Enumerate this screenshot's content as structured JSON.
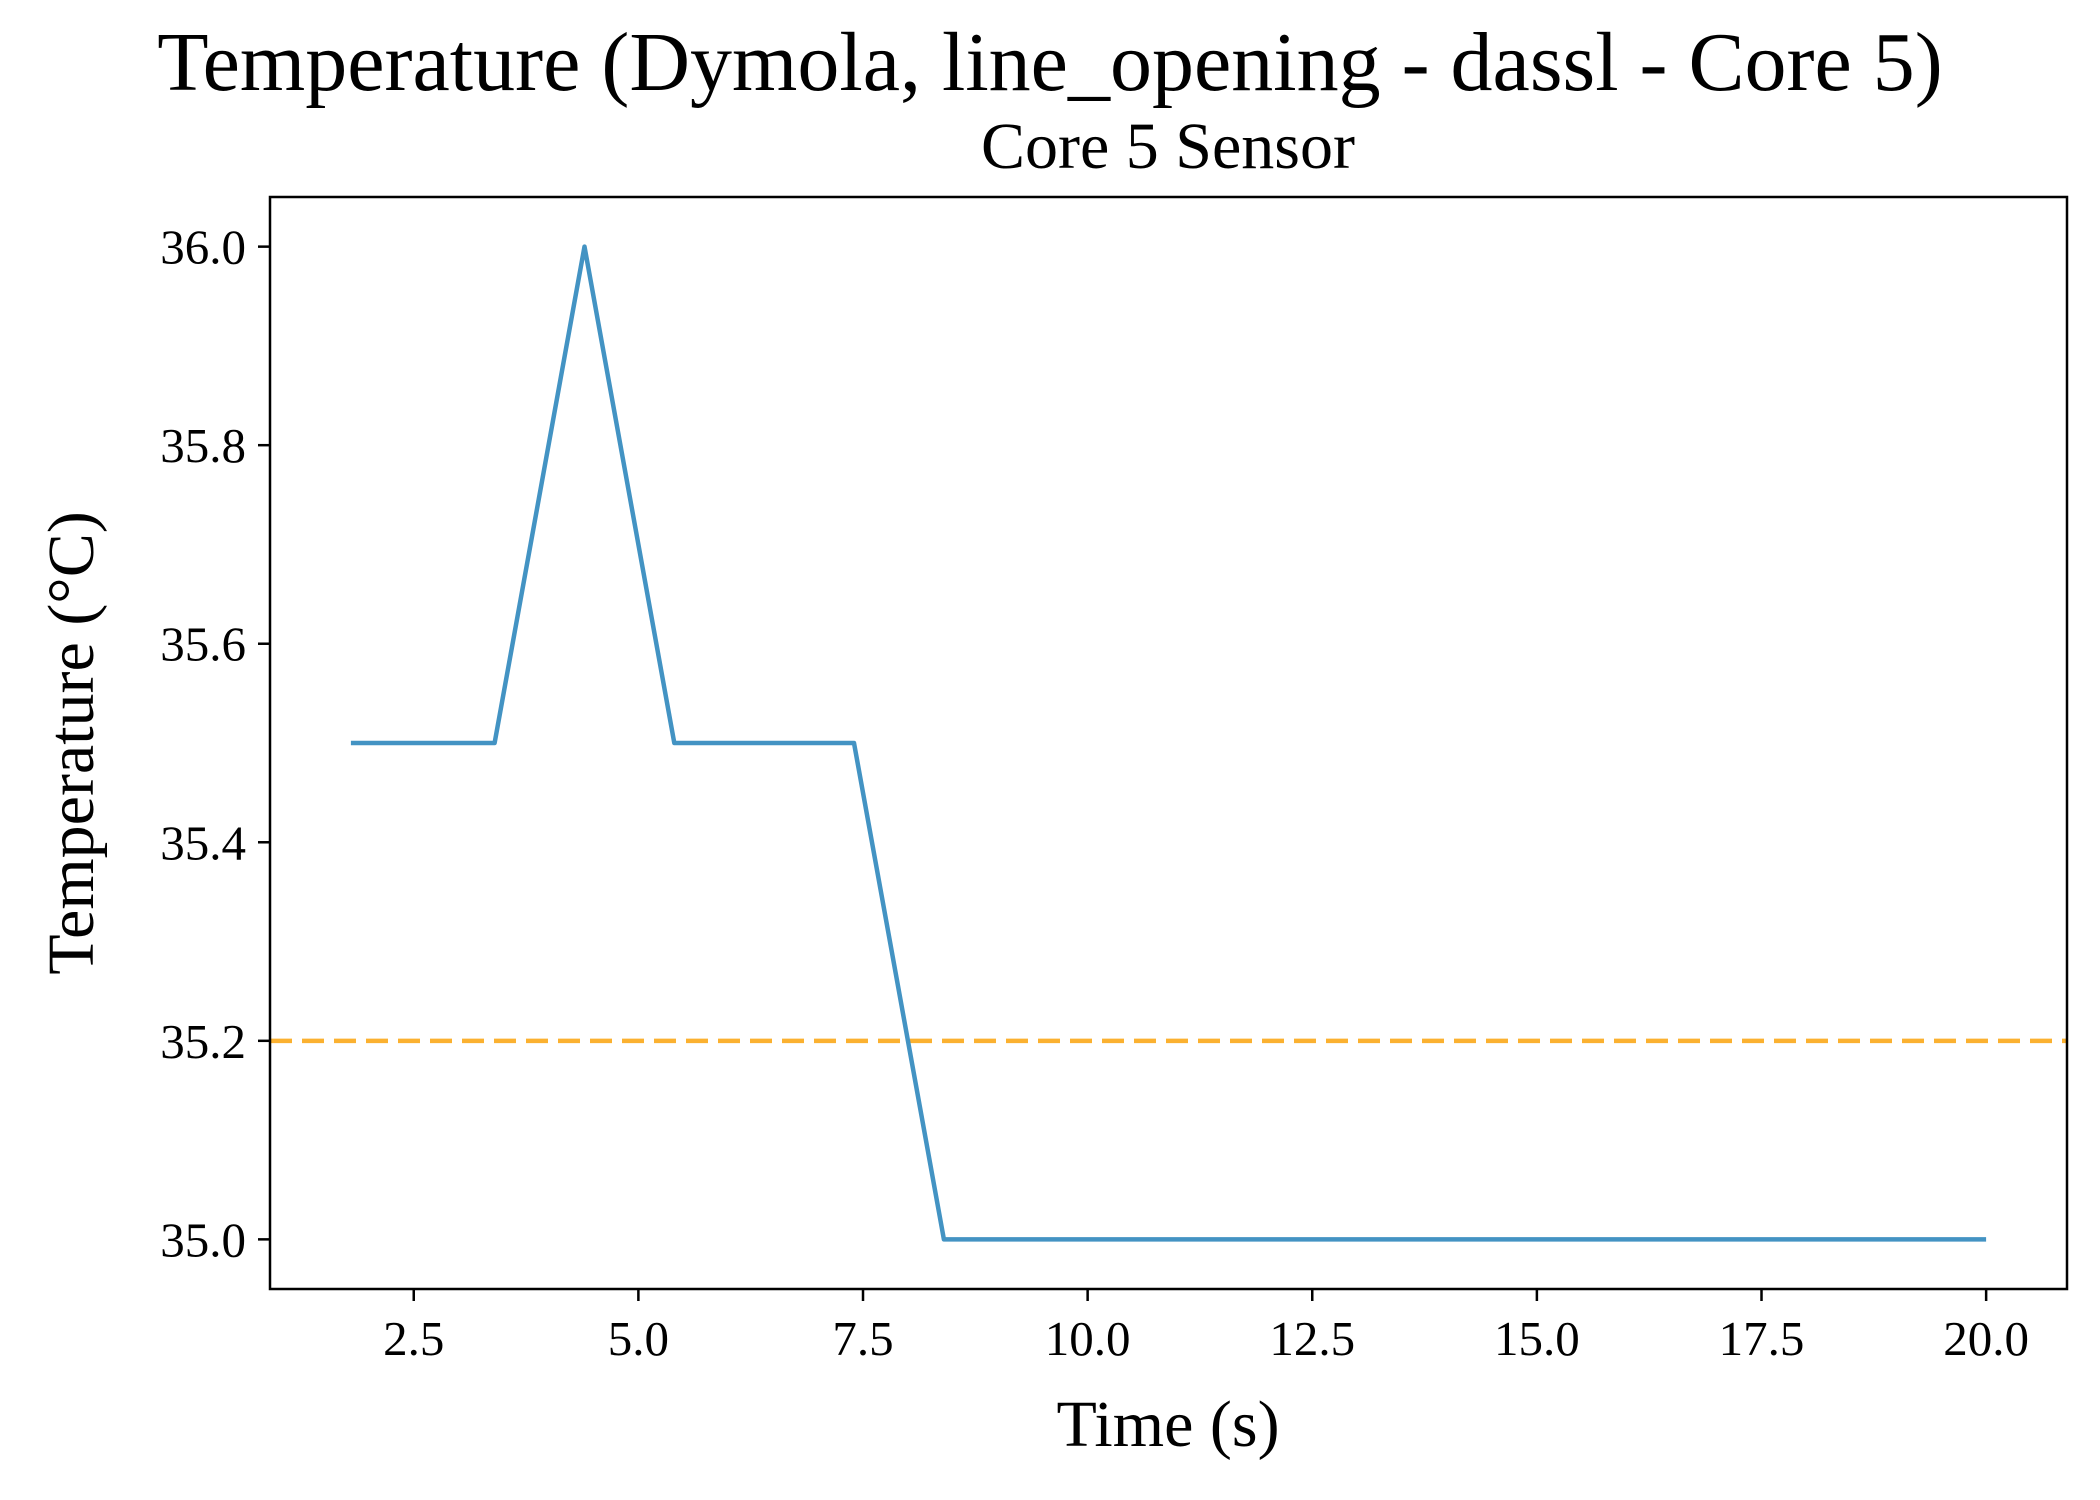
{
  "chart_data": {
    "type": "line",
    "title": "Temperature (Dymola, line_opening - dassl - Core 5)",
    "subtitle": "Core 5 Sensor",
    "xlabel": "Time (s)",
    "ylabel": "Temperature (°C)",
    "xlim": [
      0.9,
      20.9
    ],
    "ylim": [
      34.95,
      36.05
    ],
    "xticks": [
      2.5,
      5.0,
      7.5,
      10.0,
      12.5,
      15.0,
      17.5,
      20.0
    ],
    "xtick_labels": [
      "2.5",
      "5.0",
      "7.5",
      "10.0",
      "12.5",
      "15.0",
      "17.5",
      "20.0"
    ],
    "yticks": [
      35.0,
      35.2,
      35.4,
      35.6,
      35.8,
      36.0
    ],
    "ytick_labels": [
      "35.0",
      "35.2",
      "35.4",
      "35.6",
      "35.8",
      "36.0"
    ],
    "grid": false,
    "series": [
      {
        "color": "#4393c3",
        "style": "solid",
        "x": [
          1.8,
          3.4,
          4.4,
          5.4,
          7.4,
          8.4,
          20.0
        ],
        "y": [
          35.5,
          35.5,
          36.0,
          35.5,
          35.5,
          35.0,
          35.0
        ]
      }
    ],
    "reference_lines": [
      {
        "orientation": "horizontal",
        "y": 35.2,
        "color": "#fbb130",
        "style": "dashed"
      }
    ]
  }
}
